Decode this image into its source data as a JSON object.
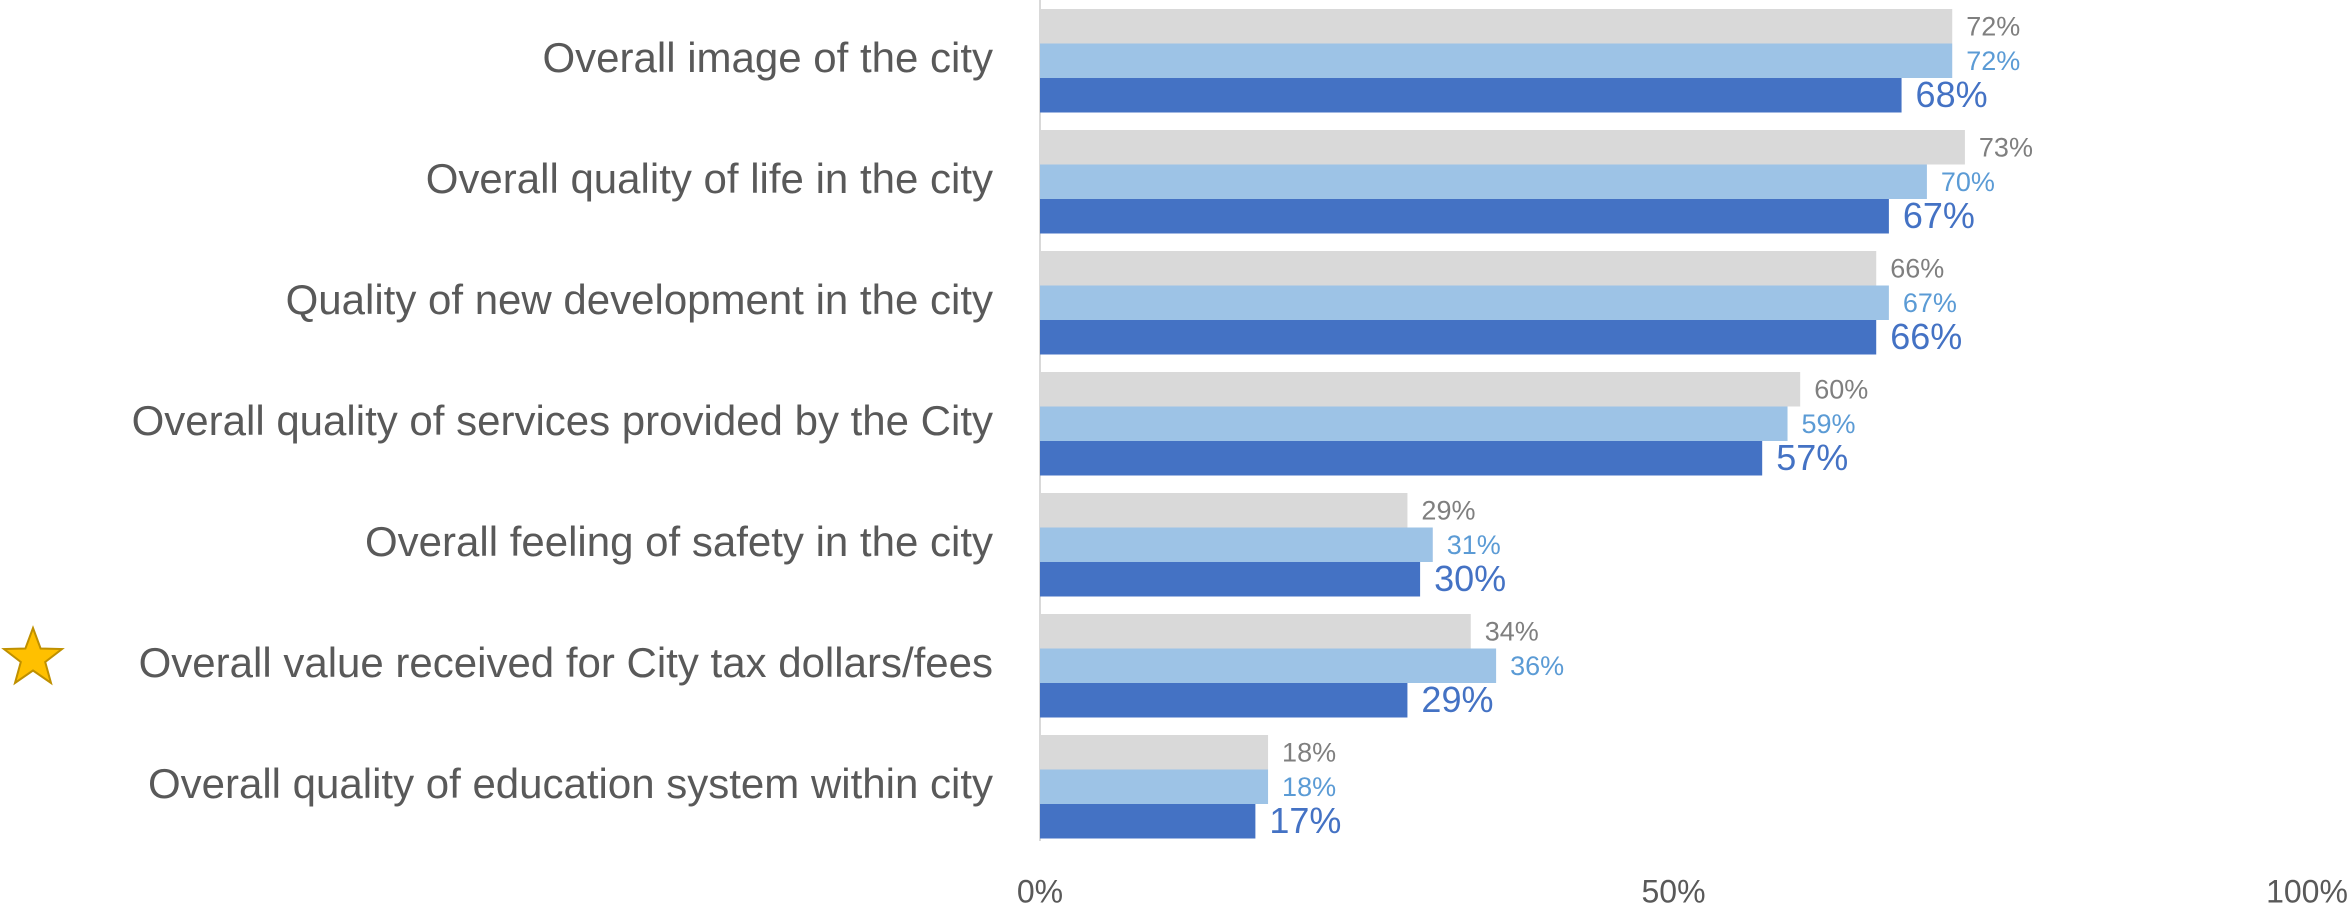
{
  "chart_data": {
    "type": "hbar",
    "categories": [
      "Overall image of the city",
      "Overall quality of life in the city",
      "Quality of new development in the city",
      "Overall quality of services provided by the City",
      "Overall feeling of safety in the city",
      "Overall value received for City tax dollars/fees",
      "Overall quality of education system within city"
    ],
    "series": [
      {
        "color": "#d9d9d9",
        "label_color": "#7f7f7f",
        "values": [
          72,
          73,
          66,
          60,
          29,
          34,
          18
        ],
        "value_labels": [
          "72%",
          "73%",
          "66%",
          "60%",
          "29%",
          "34%",
          "18%"
        ]
      },
      {
        "color": "#9dc3e6",
        "label_color": "#5b9bd5",
        "values": [
          72,
          70,
          67,
          59,
          31,
          36,
          18
        ],
        "value_labels": [
          "72%",
          "70%",
          "67%",
          "59%",
          "31%",
          "36%",
          "18%"
        ]
      },
      {
        "color": "#4472c4",
        "label_color": "#4472c4",
        "values": [
          68,
          67,
          66,
          57,
          30,
          29,
          17
        ],
        "value_labels": [
          "68%",
          "67%",
          "66%",
          "57%",
          "30%",
          "29%",
          "17%"
        ]
      }
    ],
    "xlim": [
      0,
      100
    ],
    "xticks": [
      {
        "value": 0,
        "label": "0%"
      },
      {
        "value": 50,
        "label": "50%"
      },
      {
        "value": 100,
        "label": "100%"
      }
    ],
    "grid": false
  }
}
